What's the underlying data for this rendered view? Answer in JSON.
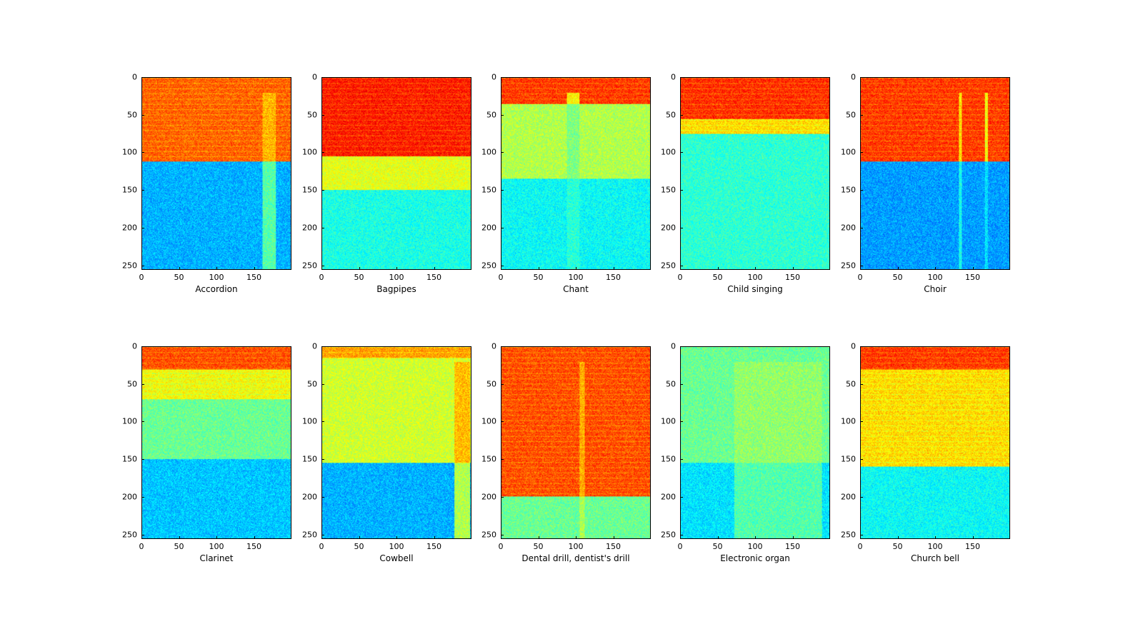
{
  "chart_data": [
    {
      "type": "heatmap",
      "xlabel": "Accordion",
      "xticks": [
        "0",
        "50",
        "100",
        "150"
      ],
      "yticks": [
        "0",
        "50",
        "100",
        "150",
        "200",
        "250"
      ],
      "xlim": [
        0,
        199
      ],
      "ylim": [
        256,
        0
      ],
      "colormap": "jet",
      "rows": [
        {
          "from": 0,
          "to": 112,
          "level": 0.78
        },
        {
          "from": 112,
          "to": 256,
          "level": 0.3
        }
      ],
      "cols": [
        {
          "from": 162,
          "to": 180,
          "level": 0.62
        }
      ]
    },
    {
      "type": "heatmap",
      "xlabel": "Bagpipes",
      "xticks": [
        "0",
        "50",
        "100",
        "150"
      ],
      "yticks": [
        "0",
        "50",
        "100",
        "150",
        "200",
        "250"
      ],
      "xlim": [
        0,
        199
      ],
      "ylim": [
        256,
        0
      ],
      "colormap": "jet",
      "rows": [
        {
          "from": 0,
          "to": 105,
          "level": 0.85
        },
        {
          "from": 105,
          "to": 150,
          "level": 0.6
        },
        {
          "from": 150,
          "to": 256,
          "level": 0.4
        }
      ],
      "cols": []
    },
    {
      "type": "heatmap",
      "xlabel": "Chant",
      "xticks": [
        "0",
        "50",
        "100",
        "150"
      ],
      "yticks": [
        "0",
        "50",
        "100",
        "150",
        "200",
        "250"
      ],
      "xlim": [
        0,
        199
      ],
      "ylim": [
        256,
        0
      ],
      "colormap": "jet",
      "rows": [
        {
          "from": 0,
          "to": 35,
          "level": 0.82
        },
        {
          "from": 35,
          "to": 135,
          "level": 0.55
        },
        {
          "from": 135,
          "to": 256,
          "level": 0.38
        }
      ],
      "cols": [
        {
          "from": 88,
          "to": 105,
          "level": 0.45
        }
      ]
    },
    {
      "type": "heatmap",
      "xlabel": "Child singing",
      "xticks": [
        "0",
        "50",
        "100",
        "150"
      ],
      "yticks": [
        "0",
        "50",
        "100",
        "150",
        "200",
        "250"
      ],
      "xlim": [
        0,
        199
      ],
      "ylim": [
        256,
        0
      ],
      "colormap": "jet",
      "rows": [
        {
          "from": 0,
          "to": 55,
          "level": 0.83
        },
        {
          "from": 55,
          "to": 75,
          "level": 0.66
        },
        {
          "from": 75,
          "to": 256,
          "level": 0.42
        }
      ],
      "cols": []
    },
    {
      "type": "heatmap",
      "xlabel": "Choir",
      "xticks": [
        "0",
        "50",
        "100",
        "150"
      ],
      "yticks": [
        "0",
        "50",
        "100",
        "150",
        "200",
        "250"
      ],
      "xlim": [
        0,
        199
      ],
      "ylim": [
        256,
        0
      ],
      "colormap": "jet",
      "rows": [
        {
          "from": 0,
          "to": 112,
          "level": 0.82
        },
        {
          "from": 112,
          "to": 256,
          "level": 0.28
        }
      ],
      "cols": [
        {
          "from": 132,
          "to": 136,
          "level": 0.5
        },
        {
          "from": 167,
          "to": 171,
          "level": 0.42
        }
      ]
    },
    {
      "type": "heatmap",
      "xlabel": "Clarinet",
      "xticks": [
        "0",
        "50",
        "100",
        "150"
      ],
      "yticks": [
        "0",
        "50",
        "100",
        "150",
        "200",
        "250"
      ],
      "xlim": [
        0,
        199
      ],
      "ylim": [
        256,
        0
      ],
      "colormap": "jet",
      "rows": [
        {
          "from": 0,
          "to": 30,
          "level": 0.8
        },
        {
          "from": 30,
          "to": 70,
          "level": 0.62
        },
        {
          "from": 70,
          "to": 150,
          "level": 0.48
        },
        {
          "from": 150,
          "to": 256,
          "level": 0.32
        }
      ],
      "cols": []
    },
    {
      "type": "heatmap",
      "xlabel": "Cowbell",
      "xticks": [
        "0",
        "50",
        "100",
        "150"
      ],
      "yticks": [
        "0",
        "50",
        "100",
        "150",
        "200",
        "250"
      ],
      "xlim": [
        0,
        199
      ],
      "ylim": [
        256,
        0
      ],
      "colormap": "jet",
      "rows": [
        {
          "from": 0,
          "to": 15,
          "level": 0.72
        },
        {
          "from": 15,
          "to": 155,
          "level": 0.58
        },
        {
          "from": 155,
          "to": 256,
          "level": 0.3
        }
      ],
      "cols": [
        {
          "from": 178,
          "to": 199,
          "level": 0.8
        }
      ]
    },
    {
      "type": "heatmap",
      "xlabel": "Dental drill, dentist's drill",
      "xticks": [
        "0",
        "50",
        "100",
        "150"
      ],
      "yticks": [
        "0",
        "50",
        "100",
        "150",
        "200",
        "250"
      ],
      "xlim": [
        0,
        199
      ],
      "ylim": [
        256,
        0
      ],
      "colormap": "jet",
      "rows": [
        {
          "from": 0,
          "to": 200,
          "level": 0.8
        },
        {
          "from": 200,
          "to": 256,
          "level": 0.48
        }
      ],
      "cols": [
        {
          "from": 105,
          "to": 112,
          "level": 0.62
        }
      ]
    },
    {
      "type": "heatmap",
      "xlabel": "Electronic organ",
      "xticks": [
        "0",
        "50",
        "100",
        "150"
      ],
      "yticks": [
        "0",
        "50",
        "100",
        "150",
        "200",
        "250"
      ],
      "xlim": [
        0,
        199
      ],
      "ylim": [
        256,
        0
      ],
      "colormap": "jet",
      "rows": [
        {
          "from": 0,
          "to": 155,
          "level": 0.48
        },
        {
          "from": 155,
          "to": 256,
          "level": 0.35
        }
      ],
      "cols": [
        {
          "from": 72,
          "to": 190,
          "level": 0.56
        }
      ]
    },
    {
      "type": "heatmap",
      "xlabel": "Church bell",
      "xticks": [
        "0",
        "50",
        "100",
        "150"
      ],
      "yticks": [
        "0",
        "50",
        "100",
        "150",
        "200",
        "250"
      ],
      "xlim": [
        0,
        199
      ],
      "ylim": [
        256,
        0
      ],
      "colormap": "jet",
      "rows": [
        {
          "from": 0,
          "to": 30,
          "level": 0.82
        },
        {
          "from": 30,
          "to": 160,
          "level": 0.66
        },
        {
          "from": 160,
          "to": 256,
          "level": 0.38
        }
      ],
      "cols": []
    }
  ]
}
